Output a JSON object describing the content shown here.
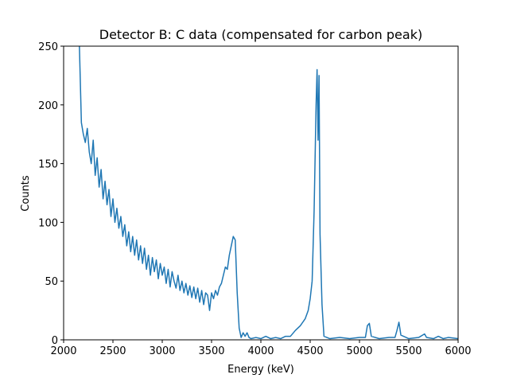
{
  "chart_data": {
    "type": "line",
    "title": "Detector B: C data (compensated for carbon peak)",
    "x_label": "Energy (keV)",
    "y_label": "Counts",
    "xlim": [
      2000,
      6000
    ],
    "ylim": [
      0,
      250
    ],
    "xticks": [
      2000,
      2500,
      3000,
      3500,
      4000,
      4500,
      5000,
      5500,
      6000
    ],
    "yticks": [
      0,
      50,
      100,
      150,
      200,
      250
    ],
    "x": [
      2160,
      2180,
      2200,
      2220,
      2240,
      2260,
      2280,
      2300,
      2320,
      2340,
      2360,
      2380,
      2400,
      2420,
      2440,
      2460,
      2480,
      2500,
      2520,
      2540,
      2560,
      2580,
      2600,
      2620,
      2640,
      2660,
      2680,
      2700,
      2720,
      2740,
      2760,
      2780,
      2800,
      2820,
      2840,
      2860,
      2880,
      2900,
      2920,
      2940,
      2960,
      2980,
      3000,
      3020,
      3040,
      3060,
      3080,
      3100,
      3120,
      3140,
      3160,
      3180,
      3200,
      3220,
      3240,
      3260,
      3280,
      3300,
      3320,
      3340,
      3360,
      3380,
      3400,
      3420,
      3440,
      3460,
      3480,
      3500,
      3520,
      3540,
      3560,
      3580,
      3600,
      3620,
      3640,
      3660,
      3680,
      3700,
      3720,
      3740,
      3760,
      3780,
      3800,
      3820,
      3840,
      3860,
      3880,
      3900,
      3950,
      4000,
      4050,
      4100,
      4150,
      4200,
      4250,
      4300,
      4350,
      4400,
      4450,
      4480,
      4500,
      4520,
      4540,
      4560,
      4570,
      4580,
      4590,
      4600,
      4620,
      4640,
      4700,
      4800,
      4900,
      5000,
      5060,
      5080,
      5100,
      5120,
      5200,
      5300,
      5360,
      5380,
      5400,
      5420,
      5500,
      5600,
      5660,
      5680,
      5750,
      5800,
      5850,
      5900,
      6000
    ],
    "series": [
      {
        "name": "counts",
        "color": "#1f77b4",
        "values": [
          250,
          185,
          175,
          168,
          180,
          160,
          150,
          170,
          140,
          155,
          130,
          145,
          120,
          135,
          115,
          128,
          105,
          120,
          100,
          112,
          95,
          105,
          88,
          98,
          80,
          92,
          75,
          88,
          72,
          85,
          68,
          80,
          65,
          78,
          60,
          72,
          55,
          70,
          58,
          68,
          52,
          65,
          55,
          62,
          48,
          60,
          45,
          58,
          50,
          44,
          55,
          42,
          50,
          40,
          48,
          38,
          46,
          36,
          45,
          35,
          44,
          32,
          42,
          30,
          40,
          38,
          25,
          40,
          35,
          42,
          38,
          45,
          48,
          55,
          62,
          60,
          72,
          80,
          88,
          85,
          40,
          10,
          2,
          6,
          3,
          6,
          2,
          1,
          2,
          1,
          3,
          1,
          2,
          1,
          3,
          3,
          8,
          12,
          18,
          25,
          35,
          50,
          110,
          200,
          230,
          170,
          225,
          90,
          30,
          3,
          1,
          2,
          1,
          2,
          2,
          12,
          14,
          3,
          1,
          2,
          2,
          8,
          15,
          4,
          1,
          2,
          5,
          2,
          1,
          3,
          1,
          2,
          1
        ]
      }
    ]
  }
}
